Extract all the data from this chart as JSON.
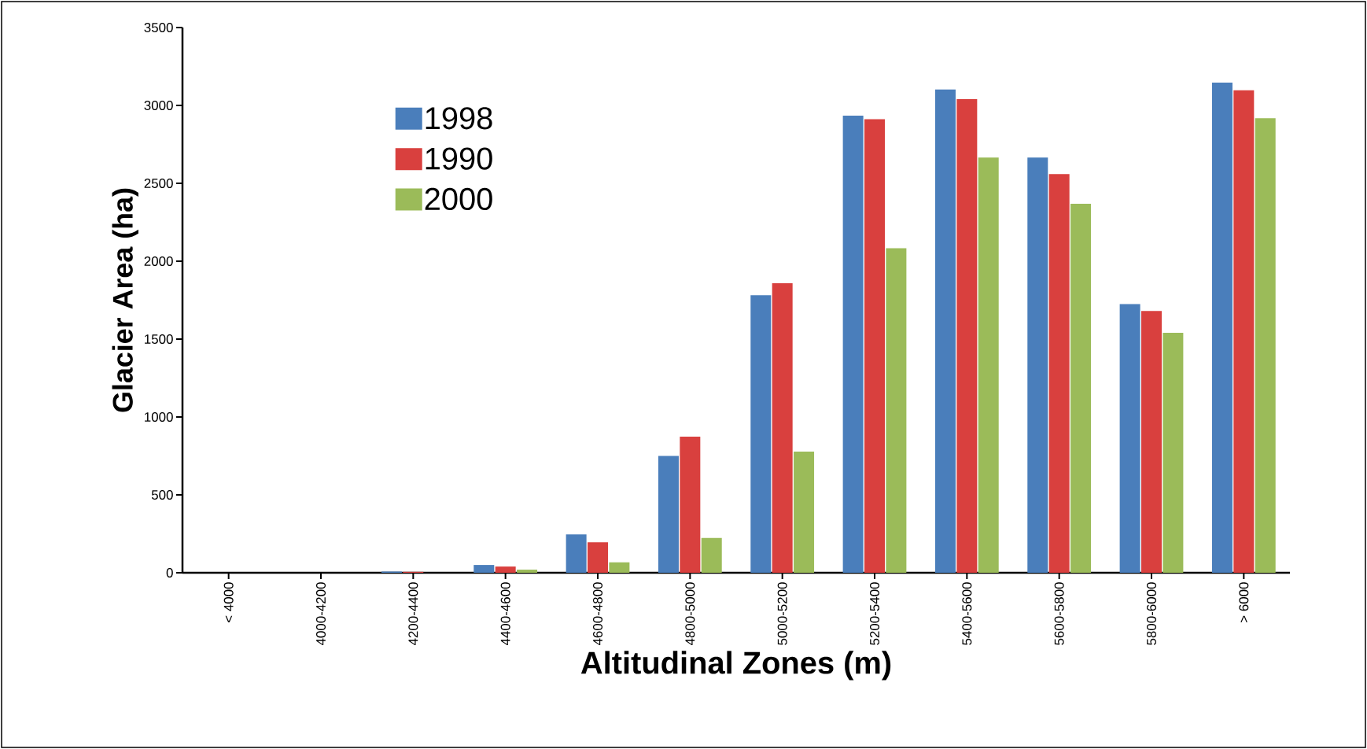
{
  "chart_data": {
    "type": "bar",
    "xlabel": "Altitudinal Zones (m)",
    "ylabel": "Glacier Area (ha)",
    "categories": [
      "< 4000",
      "4000-4200",
      "4200-4400",
      "4400-4600",
      "4600-4800",
      "4800-5000",
      "5000-5200",
      "5200-5400",
      "5400-5600",
      "5600-5800",
      "5800-6000",
      "> 6000"
    ],
    "series": [
      {
        "name": "1998",
        "color": "#4a7ebb",
        "values": [
          0,
          0,
          8,
          50,
          246,
          750,
          1781,
          2934,
          3102,
          2666,
          1725,
          3147
        ]
      },
      {
        "name": "1990",
        "color": "#d9403e",
        "values": [
          0,
          0,
          6,
          40,
          196,
          874,
          1859,
          2912,
          3041,
          2559,
          1680,
          3097
        ]
      },
      {
        "name": "2000",
        "color": "#9bbb59",
        "values": [
          0,
          0,
          0,
          20,
          67,
          224,
          778,
          2083,
          2666,
          2369,
          1540,
          2918
        ]
      }
    ],
    "ylim": [
      0,
      3500
    ],
    "yticks": [
      0,
      500,
      1000,
      1500,
      2000,
      2500,
      3000,
      3500
    ],
    "legend": "top left"
  }
}
